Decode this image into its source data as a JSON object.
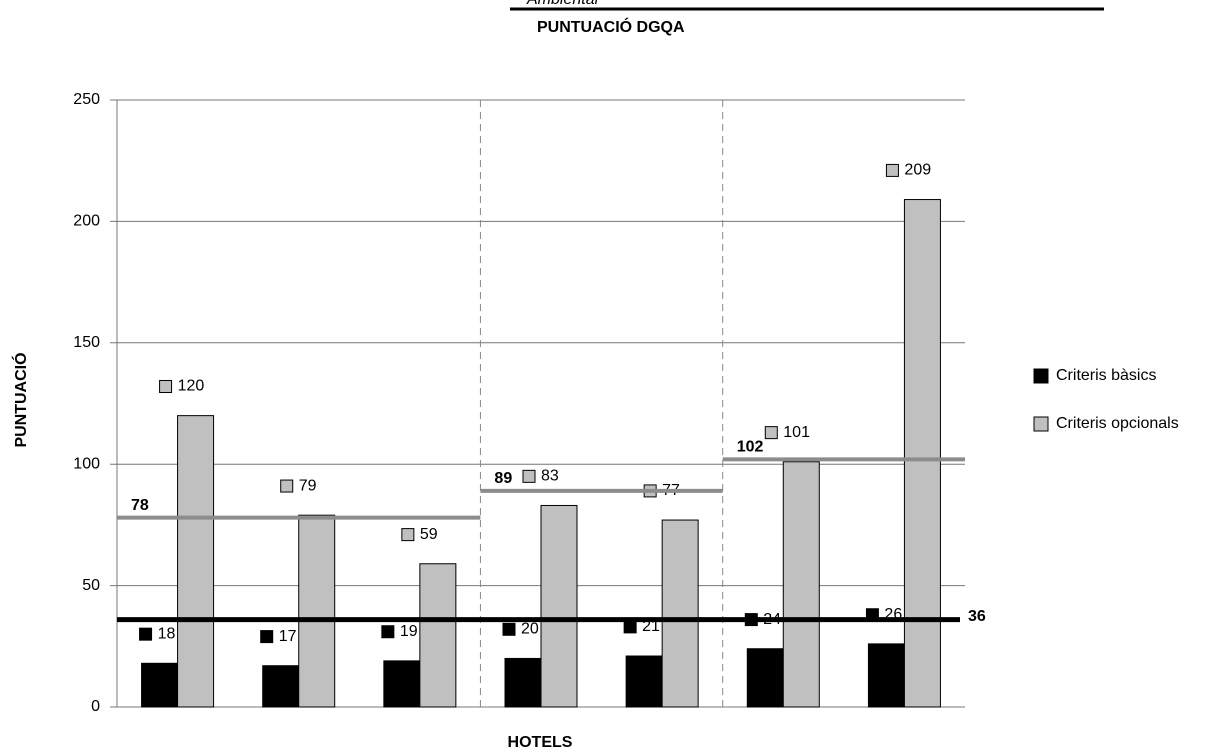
{
  "header": {
    "subtitle": "Ambiental"
  },
  "chart_data": {
    "type": "bar",
    "title": "PUNTUACIÓ DGQA",
    "x_label": "HOTELS",
    "y_label": "PUNTUACIÓ",
    "categories": [
      null,
      null,
      null,
      null,
      null,
      null,
      null
    ],
    "series": [
      {
        "name": "Criteris bàsics",
        "color": "#000000",
        "values": [
          18,
          17,
          19,
          20,
          21,
          24,
          26
        ]
      },
      {
        "name": "Criteris opcionals",
        "color": "#c0c0c0",
        "values": [
          120,
          79,
          59,
          83,
          77,
          101,
          209
        ]
      }
    ],
    "group_averages": {
      "color": "#8c8c8c",
      "values": [
        78,
        89,
        102
      ]
    },
    "threshold": {
      "color": "#000000",
      "value": 36
    },
    "ylim": [
      0,
      250
    ],
    "yticks": [
      0,
      50,
      100,
      150,
      200,
      250
    ],
    "grid": true,
    "legend": "right"
  }
}
